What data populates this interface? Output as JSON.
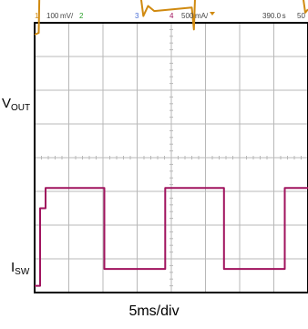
{
  "header": {
    "ch1": "1",
    "scale1": "100 mV/",
    "ch2": "2",
    "ch3": "3",
    "ch4": "4",
    "scale4": "500 mA/",
    "time": "390.0 s",
    "extra": "50"
  },
  "labels": {
    "vout_main": "V",
    "vout_sub": "OUT",
    "isw_main": "I",
    "isw_sub": "SW",
    "timebase": "5ms/div"
  },
  "colors": {
    "frame": "#000000",
    "grid": "#b8b8b8",
    "vout_trace": "#d08a10",
    "isw_trace": "#a0135e",
    "header_ch1": "#d08a10",
    "header_ch2": "#2aa02a",
    "header_ch3": "#4a6fd6",
    "header_ch4": "#a0135e"
  },
  "chart_data": {
    "type": "line",
    "xlabel": "5ms/div",
    "x_unit": "ms",
    "xlim": [
      0,
      40
    ],
    "divisions": {
      "x": 8,
      "y": 8
    },
    "series": [
      {
        "name": "VOUT",
        "x": [
          0,
          0.6,
          0.7,
          14.5,
          15.2,
          15.9,
          16.6,
          17.5,
          23.0,
          23.3,
          23.5,
          38.2,
          38.9,
          39.6,
          40
        ],
        "y": [
          3.65,
          3.7,
          4.95,
          4.95,
          5.3,
          4.2,
          4.5,
          4.35,
          4.45,
          3.8,
          4.95,
          4.95,
          5.3,
          4.3,
          4.4
        ]
      },
      {
        "name": "ISW",
        "x": [
          0,
          0.8,
          0.8,
          1.6,
          1.6,
          10.2,
          10.2,
          19.1,
          19.1,
          27.7,
          27.7,
          36.6,
          36.6,
          40
        ],
        "y": [
          -3.8,
          -3.8,
          -1.5,
          -1.5,
          -0.9,
          -0.9,
          -3.3,
          -3.3,
          -0.9,
          -0.9,
          -3.3,
          -3.3,
          -0.9,
          -0.9
        ]
      }
    ]
  }
}
